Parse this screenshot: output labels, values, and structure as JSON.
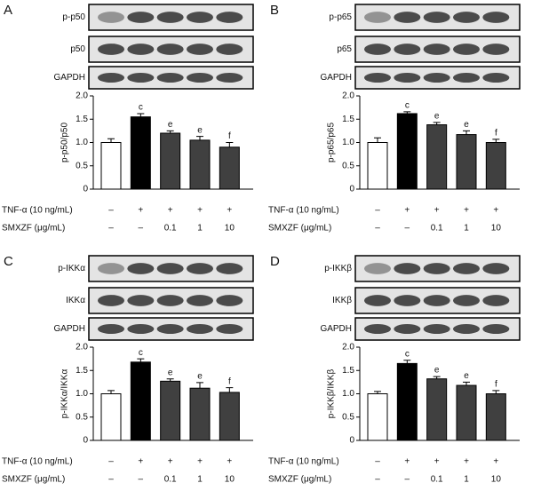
{
  "chart_data": [
    {
      "type": "bar",
      "panel": "A",
      "blot_labels": [
        "p-p50",
        "p50",
        "GAPDH"
      ],
      "ylabel": "p-p50/p50",
      "values": [
        1.0,
        1.55,
        1.2,
        1.05,
        0.9
      ],
      "errors": [
        0.08,
        0.07,
        0.05,
        0.08,
        0.1
      ],
      "colors": [
        "#ffffff",
        "#000000",
        "#404040",
        "#404040",
        "#404040"
      ],
      "annotations": [
        null,
        "c",
        "e",
        "e",
        "f"
      ],
      "ylim": [
        0,
        2
      ],
      "yticks": [
        0,
        0.5,
        {
          "value": 1,
          "label": "1.0"
        },
        1.5,
        {
          "value": 2,
          "label": "2.0"
        }
      ],
      "treatments": [
        {
          "label": "TNF-α (10 ng/mL)",
          "values": [
            "–",
            "+",
            "+",
            "+",
            "+"
          ]
        },
        {
          "label": "SMXZF (μg/mL)",
          "values": [
            "–",
            "–",
            "0.1",
            "1",
            "10"
          ]
        }
      ]
    },
    {
      "type": "bar",
      "panel": "B",
      "blot_labels": [
        "p-p65",
        "p65",
        "GAPDH"
      ],
      "ylabel": "p-p65/p65",
      "values": [
        1.0,
        1.62,
        1.38,
        1.17,
        1.0
      ],
      "errors": [
        0.1,
        0.04,
        0.05,
        0.08,
        0.07
      ],
      "colors": [
        "#ffffff",
        "#000000",
        "#404040",
        "#404040",
        "#404040"
      ],
      "annotations": [
        null,
        "c",
        "e",
        "e",
        "f"
      ],
      "ylim": [
        0,
        2
      ],
      "yticks": [
        0,
        0.5,
        {
          "value": 1,
          "label": "1.0"
        },
        1.5,
        {
          "value": 2,
          "label": "2.0"
        }
      ],
      "treatments": [
        {
          "label": "TNF-α (10 ng/mL)",
          "values": [
            "–",
            "+",
            "+",
            "+",
            "+"
          ]
        },
        {
          "label": "SMXZF (μg/mL)",
          "values": [
            "–",
            "–",
            "0.1",
            "1",
            "10"
          ]
        }
      ]
    },
    {
      "type": "bar",
      "panel": "C",
      "blot_labels": [
        "p-IKKα",
        "IKKα",
        "GAPDH"
      ],
      "ylabel": "p-IKKα/IKKα",
      "values": [
        1.0,
        1.68,
        1.27,
        1.12,
        1.03
      ],
      "errors": [
        0.07,
        0.07,
        0.05,
        0.12,
        0.1
      ],
      "colors": [
        "#ffffff",
        "#000000",
        "#404040",
        "#404040",
        "#404040"
      ],
      "annotations": [
        null,
        "c",
        "e",
        "e",
        "f"
      ],
      "ylim": [
        0,
        2
      ],
      "yticks": [
        0,
        0.5,
        {
          "value": 1,
          "label": "1.0"
        },
        1.5,
        {
          "value": 2,
          "label": "2.0"
        }
      ],
      "treatments": [
        {
          "label": "TNF-α (10 ng/mL)",
          "values": [
            "–",
            "+",
            "+",
            "+",
            "+"
          ]
        },
        {
          "label": "SMXZF (μg/mL)",
          "values": [
            "–",
            "–",
            "0.1",
            "1",
            "10"
          ]
        }
      ]
    },
    {
      "type": "bar",
      "panel": "D",
      "blot_labels": [
        "p-IKKβ",
        "IKKβ",
        "GAPDH"
      ],
      "ylabel": "p-IKKβ/IKKβ",
      "values": [
        1.0,
        1.65,
        1.32,
        1.18,
        1.0
      ],
      "errors": [
        0.05,
        0.07,
        0.05,
        0.07,
        0.07
      ],
      "colors": [
        "#ffffff",
        "#000000",
        "#404040",
        "#404040",
        "#404040"
      ],
      "annotations": [
        null,
        "c",
        "e",
        "e",
        "f"
      ],
      "ylim": [
        0,
        2
      ],
      "yticks": [
        0,
        0.5,
        {
          "value": 1,
          "label": "1.0"
        },
        1.5,
        {
          "value": 2,
          "label": "2.0"
        }
      ],
      "treatments": [
        {
          "label": "TNF-α (10 ng/mL)",
          "values": [
            "–",
            "+",
            "+",
            "+",
            "+"
          ]
        },
        {
          "label": "SMXZF (μg/mL)",
          "values": [
            "–",
            "–",
            "0.1",
            "1",
            "10"
          ]
        }
      ]
    }
  ]
}
